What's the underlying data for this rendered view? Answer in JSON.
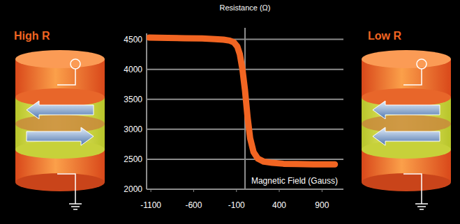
{
  "chart_data": {
    "type": "line",
    "x_label": "Magnetic Field (Gauss)",
    "y_label": "Resistance (Ω)",
    "x": [
      -1120,
      -900,
      -700,
      -500,
      -350,
      -250,
      -180,
      -130,
      -90,
      -60,
      -30,
      0,
      30,
      60,
      100,
      150,
      220,
      320,
      450,
      600,
      800,
      1050
    ],
    "values": [
      4530,
      4525,
      4520,
      4515,
      4505,
      4495,
      4480,
      4450,
      4380,
      4250,
      4000,
      3650,
      3200,
      2850,
      2620,
      2510,
      2460,
      2440,
      2425,
      2420,
      2415,
      2415
    ],
    "color": "#f26522",
    "xlim": [
      -1150,
      1150
    ],
    "ylim": [
      2000,
      4600
    ],
    "xticks": [
      -1100,
      -600,
      -100,
      400,
      900
    ],
    "yticks": [
      2000,
      2500,
      3000,
      3500,
      4000,
      4500
    ],
    "grid": true,
    "annotations": [
      "High R",
      "Low R"
    ]
  }
}
